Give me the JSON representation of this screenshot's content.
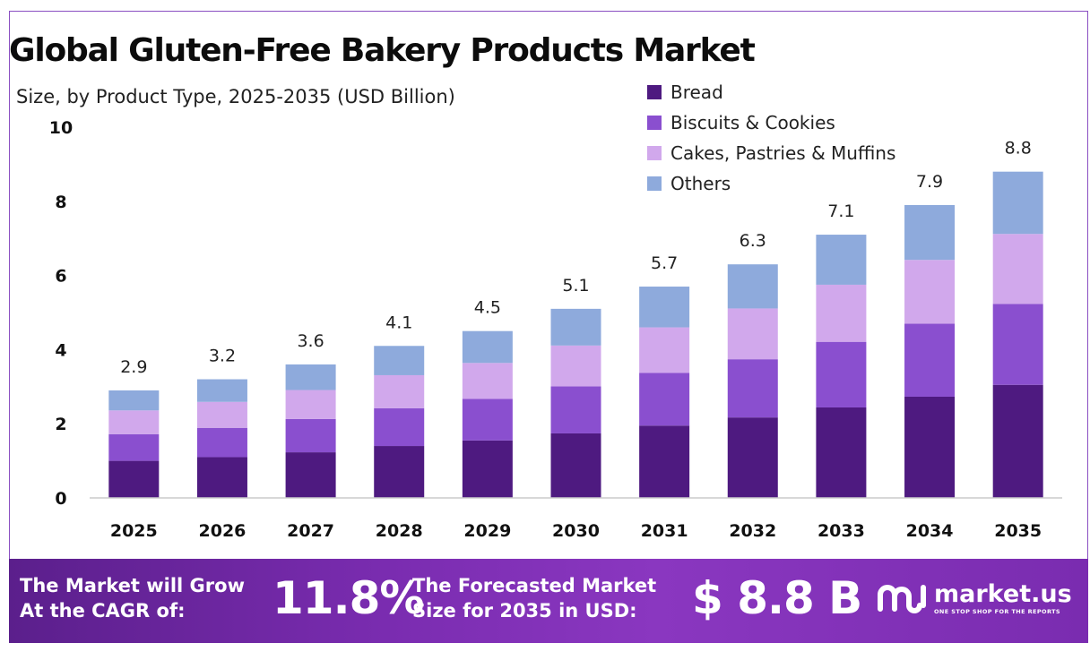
{
  "colors": {
    "bread": "#4e1a80",
    "biscuits": "#8a4fcf",
    "cakes": "#d1a8ec",
    "others": "#8eaadc",
    "axis": "#cccccc",
    "banner_start": "#5b1f8c",
    "banner_end": "#8a37c0"
  },
  "chart_data": {
    "type": "bar",
    "stacked": true,
    "title": "Global Gluten-Free Bakery Products Market",
    "subtitle": "Size, by Product Type, 2025-2035 (USD Billion)",
    "categories": [
      "2025",
      "2026",
      "2027",
      "2028",
      "2029",
      "2030",
      "2031",
      "2032",
      "2033",
      "2034",
      "2035"
    ],
    "series": [
      {
        "name": "Bread",
        "color": "#4e1a80",
        "values": [
          1.0,
          1.1,
          1.23,
          1.4,
          1.55,
          1.74,
          1.95,
          2.17,
          2.44,
          2.73,
          3.05
        ]
      },
      {
        "name": "Biscuits & Cookies",
        "color": "#8a4fcf",
        "values": [
          0.72,
          0.79,
          0.9,
          1.02,
          1.12,
          1.27,
          1.42,
          1.57,
          1.77,
          1.97,
          2.18
        ]
      },
      {
        "name": "Cakes, Pastries & Muffins",
        "color": "#d1a8ec",
        "values": [
          0.64,
          0.7,
          0.78,
          0.89,
          0.97,
          1.1,
          1.23,
          1.37,
          1.54,
          1.72,
          1.89
        ]
      },
      {
        "name": "Others",
        "color": "#8eaadc",
        "values": [
          0.54,
          0.61,
          0.69,
          0.79,
          0.86,
          0.99,
          1.1,
          1.19,
          1.35,
          1.48,
          1.68
        ]
      }
    ],
    "totals": [
      "2.9",
      "3.2",
      "3.6",
      "4.1",
      "4.5",
      "5.1",
      "5.7",
      "6.3",
      "7.1",
      "7.9",
      "8.8"
    ],
    "ylim": [
      0,
      10
    ],
    "yticks": [
      "0",
      "2",
      "4",
      "6",
      "8",
      "10"
    ],
    "legend_position": "top-right",
    "grid": false
  },
  "banner": {
    "cagr_label_line1": "The Market will Grow",
    "cagr_label_line2": "At the CAGR of:",
    "cagr_value": "11.8%",
    "forecast_label_line1": "The Forecasted Market",
    "forecast_label_line2": "Size for 2035 in USD:",
    "forecast_value": "$ 8.8 B"
  },
  "logo": {
    "name": "market.us",
    "tagline": "ONE STOP SHOP FOR THE REPORTS",
    "icon": "market-us-logo-icon"
  }
}
